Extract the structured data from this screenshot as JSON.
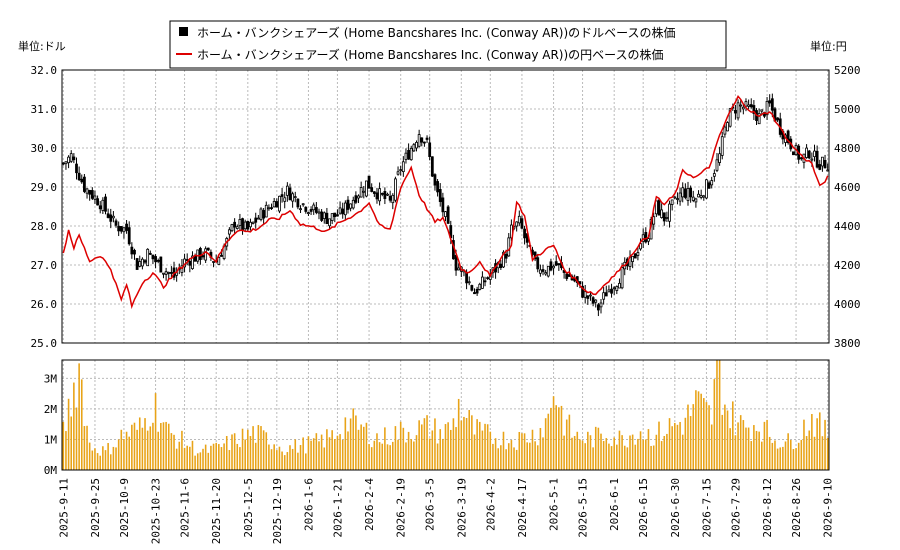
{
  "chart_data": {
    "type": "line",
    "legend": {
      "placement": "top",
      "items": [
        {
          "name": "ホーム・バンクシェアーズ (Home Bancshares Inc. (Conway AR))のドルベースの株価",
          "marker": "black-square",
          "color": "#000000"
        },
        {
          "name": "ホーム・バンクシェアーズ (Home Bancshares Inc. (Conway AR))の円ベースの株価",
          "marker": "red-line",
          "color": "#dd0000"
        }
      ]
    },
    "left_unit": "単位:ドル",
    "right_unit": "単位:円",
    "y_left": {
      "min": 25.0,
      "max": 32.0,
      "ticks": [
        "25.0",
        "26.0",
        "27.0",
        "28.0",
        "29.0",
        "30.0",
        "31.0",
        "32.0"
      ]
    },
    "y_right": {
      "min": 3800,
      "max": 5200,
      "ticks": [
        "3800",
        "4000",
        "4200",
        "4400",
        "4600",
        "4800",
        "5000",
        "5200"
      ]
    },
    "volume_axis": {
      "min": 0,
      "max": 3600000,
      "ticks": [
        "0M",
        "1M",
        "2M",
        "3M"
      ]
    },
    "x_labels": [
      "2025-9-11",
      "2025-9-25",
      "2025-10-9",
      "2025-10-23",
      "2025-11-6",
      "2025-11-20",
      "2025-12-5",
      "2025-12-19",
      "2026-1-6",
      "2026-1-21",
      "2026-2-4",
      "2026-2-19",
      "2026-3-5",
      "2026-3-19",
      "2026-4-2",
      "2026-4-17",
      "2026-5-1",
      "2026-5-15",
      "2026-6-1",
      "2026-6-15",
      "2026-6-30",
      "2026-7-15",
      "2026-7-29",
      "2026-8-12",
      "2026-8-26",
      "2026-9-10"
    ],
    "price_usd_keypoints": [
      [
        0,
        29.6
      ],
      [
        3,
        29.8
      ],
      [
        8,
        29.0
      ],
      [
        14,
        28.6
      ],
      [
        20,
        28.0
      ],
      [
        24,
        27.9
      ],
      [
        28,
        27.0
      ],
      [
        32,
        27.3
      ],
      [
        38,
        26.9
      ],
      [
        42,
        26.7
      ],
      [
        46,
        27.1
      ],
      [
        50,
        27.2
      ],
      [
        54,
        27.3
      ],
      [
        58,
        27.1
      ],
      [
        62,
        27.6
      ],
      [
        65,
        28.1
      ],
      [
        70,
        27.9
      ],
      [
        75,
        28.3
      ],
      [
        80,
        28.6
      ],
      [
        85,
        28.9
      ],
      [
        90,
        28.6
      ],
      [
        95,
        28.4
      ],
      [
        100,
        28.2
      ],
      [
        105,
        28.3
      ],
      [
        110,
        28.7
      ],
      [
        115,
        29.1
      ],
      [
        120,
        28.8
      ],
      [
        124,
        28.6
      ],
      [
        128,
        29.5
      ],
      [
        132,
        30.0
      ],
      [
        135,
        30.4
      ],
      [
        138,
        30.1
      ],
      [
        141,
        29.0
      ],
      [
        145,
        28.2
      ],
      [
        149,
        27.0
      ],
      [
        152,
        26.8
      ],
      [
        156,
        26.3
      ],
      [
        160,
        26.6
      ],
      [
        164,
        26.9
      ],
      [
        168,
        27.3
      ],
      [
        170,
        27.9
      ],
      [
        173,
        28.1
      ],
      [
        176,
        27.5
      ],
      [
        179,
        27.0
      ],
      [
        183,
        26.9
      ],
      [
        187,
        27.0
      ],
      [
        190,
        26.8
      ],
      [
        194,
        26.6
      ],
      [
        197,
        26.3
      ],
      [
        200,
        26.1
      ],
      [
        203,
        25.9
      ],
      [
        206,
        26.3
      ],
      [
        210,
        26.6
      ],
      [
        213,
        26.9
      ],
      [
        216,
        27.1
      ],
      [
        219,
        27.6
      ],
      [
        222,
        27.8
      ],
      [
        225,
        28.5
      ],
      [
        228,
        28.2
      ],
      [
        232,
        28.6
      ],
      [
        235,
        28.9
      ],
      [
        240,
        28.7
      ],
      [
        245,
        29.1
      ],
      [
        249,
        29.8
      ],
      [
        252,
        30.8
      ],
      [
        256,
        31.1
      ],
      [
        260,
        31.0
      ],
      [
        264,
        30.8
      ],
      [
        268,
        31.1
      ],
      [
        272,
        30.5
      ],
      [
        276,
        30.1
      ],
      [
        280,
        29.7
      ],
      [
        283,
        29.9
      ],
      [
        287,
        29.6
      ],
      [
        290,
        29.6
      ]
    ],
    "price_jpy_keypoints": [
      [
        0,
        4260
      ],
      [
        2,
        4380
      ],
      [
        4,
        4290
      ],
      [
        6,
        4350
      ],
      [
        10,
        4220
      ],
      [
        14,
        4250
      ],
      [
        18,
        4180
      ],
      [
        22,
        4020
      ],
      [
        24,
        4100
      ],
      [
        26,
        3990
      ],
      [
        30,
        4110
      ],
      [
        34,
        4160
      ],
      [
        38,
        4090
      ],
      [
        44,
        4180
      ],
      [
        48,
        4230
      ],
      [
        54,
        4270
      ],
      [
        58,
        4220
      ],
      [
        62,
        4320
      ],
      [
        66,
        4380
      ],
      [
        70,
        4370
      ],
      [
        74,
        4390
      ],
      [
        78,
        4430
      ],
      [
        82,
        4440
      ],
      [
        86,
        4480
      ],
      [
        90,
        4410
      ],
      [
        96,
        4390
      ],
      [
        100,
        4370
      ],
      [
        104,
        4410
      ],
      [
        108,
        4440
      ],
      [
        112,
        4470
      ],
      [
        116,
        4520
      ],
      [
        120,
        4400
      ],
      [
        124,
        4380
      ],
      [
        128,
        4600
      ],
      [
        132,
        4700
      ],
      [
        135,
        4560
      ],
      [
        138,
        4490
      ],
      [
        141,
        4420
      ],
      [
        144,
        4440
      ],
      [
        148,
        4300
      ],
      [
        151,
        4180
      ],
      [
        154,
        4160
      ],
      [
        158,
        4220
      ],
      [
        162,
        4140
      ],
      [
        166,
        4240
      ],
      [
        170,
        4300
      ],
      [
        172,
        4530
      ],
      [
        175,
        4450
      ],
      [
        178,
        4230
      ],
      [
        182,
        4270
      ],
      [
        186,
        4300
      ],
      [
        190,
        4180
      ],
      [
        194,
        4130
      ],
      [
        198,
        4070
      ],
      [
        202,
        4050
      ],
      [
        206,
        4110
      ],
      [
        210,
        4160
      ],
      [
        214,
        4220
      ],
      [
        218,
        4300
      ],
      [
        222,
        4350
      ],
      [
        225,
        4550
      ],
      [
        228,
        4510
      ],
      [
        232,
        4560
      ],
      [
        235,
        4680
      ],
      [
        240,
        4650
      ],
      [
        245,
        4700
      ],
      [
        249,
        4860
      ],
      [
        252,
        4960
      ],
      [
        256,
        5060
      ],
      [
        260,
        5000
      ],
      [
        264,
        4960
      ],
      [
        268,
        4990
      ],
      [
        272,
        4900
      ],
      [
        276,
        4820
      ],
      [
        280,
        4760
      ],
      [
        284,
        4720
      ],
      [
        287,
        4600
      ],
      [
        290,
        4650
      ]
    ],
    "volume_keypoints": [
      [
        0,
        1200000
      ],
      [
        6,
        3400000
      ],
      [
        10,
        800000
      ],
      [
        16,
        600000
      ],
      [
        22,
        1100000
      ],
      [
        30,
        1400000
      ],
      [
        34,
        2200000
      ],
      [
        40,
        1200000
      ],
      [
        46,
        900000
      ],
      [
        52,
        600000
      ],
      [
        58,
        700000
      ],
      [
        66,
        1000000
      ],
      [
        72,
        1200000
      ],
      [
        78,
        1000000
      ],
      [
        84,
        700000
      ],
      [
        90,
        800000
      ],
      [
        96,
        900000
      ],
      [
        102,
        1100000
      ],
      [
        108,
        1600000
      ],
      [
        114,
        1300000
      ],
      [
        120,
        1000000
      ],
      [
        126,
        1200000
      ],
      [
        132,
        1300000
      ],
      [
        138,
        1400000
      ],
      [
        144,
        1200000
      ],
      [
        148,
        1500000
      ],
      [
        150,
        2100000
      ],
      [
        156,
        1300000
      ],
      [
        162,
        1100000
      ],
      [
        168,
        1000000
      ],
      [
        172,
        1000000
      ],
      [
        180,
        1200000
      ],
      [
        184,
        1700000
      ],
      [
        186,
        2700000
      ],
      [
        190,
        1600000
      ],
      [
        194,
        1100000
      ],
      [
        200,
        1000000
      ],
      [
        206,
        1200000
      ],
      [
        212,
        1000000
      ],
      [
        218,
        1300000
      ],
      [
        224,
        1100000
      ],
      [
        230,
        1400000
      ],
      [
        236,
        1600000
      ],
      [
        240,
        2200000
      ],
      [
        246,
        1700000
      ],
      [
        248,
        3500000
      ],
      [
        252,
        1900000
      ],
      [
        258,
        1400000
      ],
      [
        264,
        1500000
      ],
      [
        270,
        1000000
      ],
      [
        276,
        900000
      ],
      [
        280,
        1300000
      ],
      [
        284,
        1700000
      ],
      [
        288,
        1300000
      ],
      [
        290,
        1200000
      ]
    ]
  }
}
